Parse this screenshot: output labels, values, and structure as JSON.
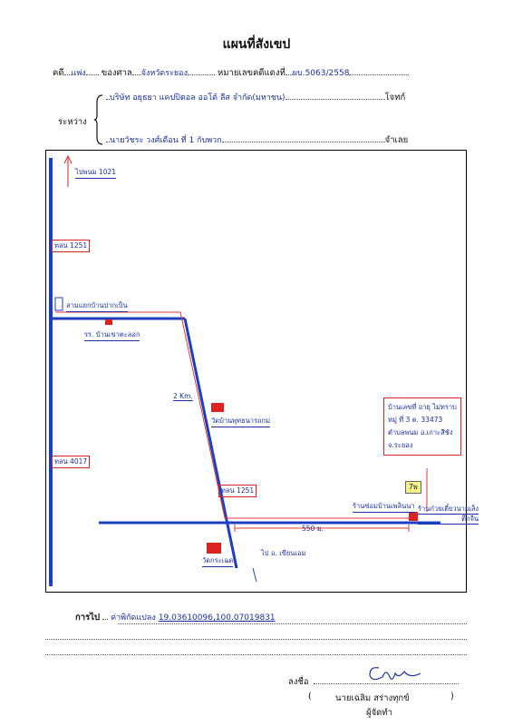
{
  "title": "แผนที่สังเขป",
  "case": {
    "case_label": "คดี",
    "case_type": "แพ่ง",
    "court_label": "ของศาล",
    "court": "จังหวัดระยอง",
    "black_no_label": "หมายเลขคดีแดงที่",
    "black_no": "ผบ.5063/2558",
    "between_label": "ระหว่าง",
    "plaintiff": "บริษัท อยุธยา แคปปิตอล ออโต้ ลีส จำกัด(มหาชน)",
    "plaintiff_role": "โจทก์",
    "defendant": "นายวัชระ วงศ์เดือน ที่ 1 กับพวก",
    "defendant_role": "จำเลย"
  },
  "map": {
    "to_phanom": "ไปพนม 1021",
    "road_1251_top": "ทลน 1251",
    "junction": "สามแยกบ้านปากเป็น",
    "school": "รร. บ้านเขาตะลอก",
    "dist_2km": "2 Km.",
    "temple1": "วัดบ้านพุทธนารถกม่",
    "road_4017": "ทลน 4017",
    "road_1251_mid": "ทลน 1251",
    "temple2": "วัดกระเฉด",
    "to_bottom": "ไป อ. เขียนเอม",
    "dist_550": "550 ม.",
    "house_info": [
      "บ้านเลขที่ อายุ ไม่ทราบ",
      "หมู่ ที่ 3 ต. 33473",
      "ตำบลพนม อ.เกาะสีชัง",
      "จ.ระยอง"
    ],
    "tag": "7พ",
    "shop1": "ร้านซ่อมบ้านเพลินนา",
    "shop2": "ร้านก๋วยเตี๋ยวนายเส็ง",
    "shop2_sub": "ตึกจีน"
  },
  "footer": {
    "to_label": "การไป",
    "coord_label": "ค่าพิกัดแปลง",
    "coords": "19.03610096,100.07019831",
    "sign_label": "ลงชื่อ",
    "signer_name": "นายเฉลิม  สร่างทุกข์",
    "signer_title": "ผู้จัดทำ"
  }
}
